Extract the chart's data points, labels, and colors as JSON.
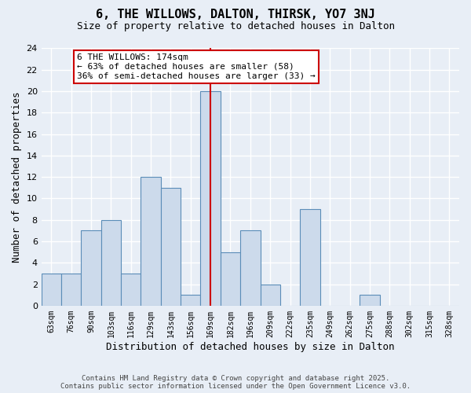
{
  "title1": "6, THE WILLOWS, DALTON, THIRSK, YO7 3NJ",
  "title2": "Size of property relative to detached houses in Dalton",
  "xlabel": "Distribution of detached houses by size in Dalton",
  "ylabel": "Number of detached properties",
  "bin_labels": [
    "63sqm",
    "76sqm",
    "90sqm",
    "103sqm",
    "116sqm",
    "129sqm",
    "143sqm",
    "156sqm",
    "169sqm",
    "182sqm",
    "196sqm",
    "209sqm",
    "222sqm",
    "235sqm",
    "249sqm",
    "262sqm",
    "275sqm",
    "288sqm",
    "302sqm",
    "315sqm",
    "328sqm"
  ],
  "bar_heights": [
    3,
    3,
    7,
    8,
    3,
    12,
    11,
    1,
    20,
    5,
    7,
    2,
    0,
    9,
    0,
    0,
    1,
    0,
    0,
    0,
    0
  ],
  "bar_color": "#ccdaeb",
  "bar_edge_color": "#5b8db8",
  "vline_bin": 8,
  "vline_color": "#cc0000",
  "ylim": [
    0,
    24
  ],
  "yticks": [
    0,
    2,
    4,
    6,
    8,
    10,
    12,
    14,
    16,
    18,
    20,
    22,
    24
  ],
  "annotation_text": "6 THE WILLOWS: 174sqm\n← 63% of detached houses are smaller (58)\n36% of semi-detached houses are larger (33) →",
  "annotation_box_color": "#ffffff",
  "annotation_box_edge": "#cc0000",
  "footer_text": "Contains HM Land Registry data © Crown copyright and database right 2025.\nContains public sector information licensed under the Open Government Licence v3.0.",
  "bg_color": "#e8eef6",
  "grid_color": "#ffffff",
  "title_fontsize": 11,
  "subtitle_fontsize": 9,
  "axis_label_fontsize": 9,
  "tick_fontsize": 8,
  "xtick_fontsize": 7,
  "annotation_fontsize": 8,
  "footer_fontsize": 6.5
}
